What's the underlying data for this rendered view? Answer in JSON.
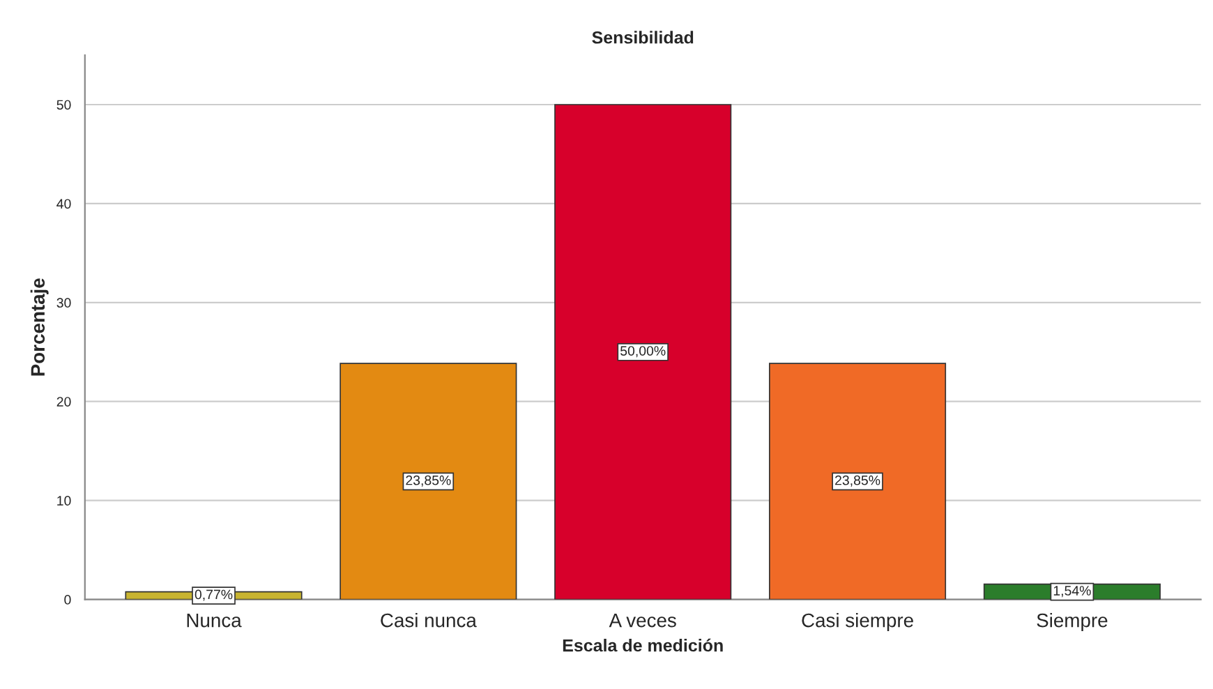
{
  "chart_data": {
    "type": "bar",
    "title": "Sensibilidad",
    "xlabel": "Escala de medición",
    "ylabel": "Porcentaje",
    "categories": [
      "Nunca",
      "Casi nunca",
      "A veces",
      "Casi siempre",
      "Siempre"
    ],
    "values": [
      0.77,
      23.85,
      50.0,
      23.85,
      1.54
    ],
    "colors": [
      "#c8b431",
      "#e38a12",
      "#d7002b",
      "#f06a26",
      "#2b7d2b"
    ],
    "value_labels": [
      "0,77%",
      "23,85%",
      "50,00%",
      "23,85%",
      "1,54%"
    ],
    "ylim": [
      0,
      55
    ],
    "yticks": [
      0,
      10,
      20,
      30,
      40,
      50
    ],
    "grid": "y",
    "legend": false
  }
}
